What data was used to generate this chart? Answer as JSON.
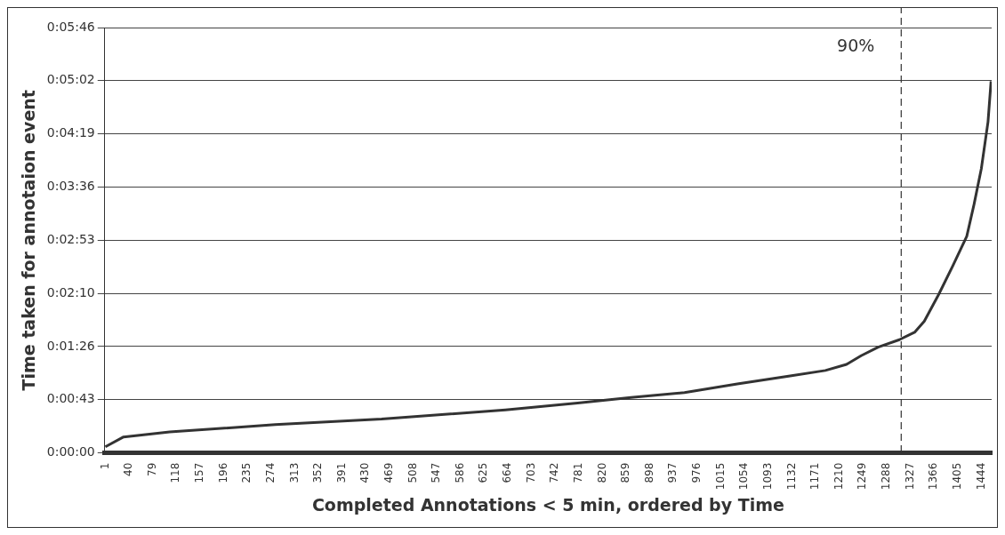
{
  "chart_data": {
    "type": "line",
    "xlabel": "Completed Annotations < 5 min, ordered by Time",
    "ylabel": "Time taken for annotaion event",
    "xlim": [
      0,
      1461
    ],
    "xticks": [
      1,
      40,
      79,
      118,
      157,
      196,
      235,
      274,
      313,
      352,
      391,
      430,
      469,
      508,
      547,
      586,
      625,
      664,
      703,
      742,
      781,
      820,
      859,
      898,
      937,
      976,
      1015,
      1054,
      1093,
      1132,
      1171,
      1210,
      1249,
      1288,
      1327,
      1366,
      1405,
      1444
    ],
    "ylim": [
      0,
      345.6
    ],
    "yticks": [
      {
        "value": 0,
        "label": "0:00:00"
      },
      {
        "value": 43.2,
        "label": "0:00:43"
      },
      {
        "value": 86.4,
        "label": "0:01:26"
      },
      {
        "value": 129.6,
        "label": "0:02:10"
      },
      {
        "value": 172.8,
        "label": "0:02:53"
      },
      {
        "value": 216,
        "label": "0:03:36"
      },
      {
        "value": 259.2,
        "label": "0:04:19"
      },
      {
        "value": 302.4,
        "label": "0:05:02"
      },
      {
        "value": 345.6,
        "label": "0:05:46"
      }
    ],
    "grid": "y",
    "legend": false,
    "marker": "none",
    "line_style": "solid",
    "ref_lines": [
      {
        "axis": "x",
        "value": 1312,
        "color": "#333333",
        "line_style": "dashed"
      }
    ],
    "annotations": [
      "90%"
    ],
    "series": [
      {
        "color": "#333333",
        "x": [
          1,
          31,
          107,
          281,
          456,
          660,
          779,
          867,
          955,
          1042,
          1129,
          1187,
          1222,
          1246,
          1274,
          1309,
          1334,
          1350,
          1374,
          1397,
          1420,
          1432,
          1444,
          1455,
          1460
        ],
        "values": [
          5,
          13,
          17,
          23,
          27.5,
          35,
          40.6,
          45,
          49,
          56,
          62.6,
          67,
          72,
          79,
          86,
          92,
          98,
          107,
          129,
          152,
          176,
          202,
          231,
          269,
          302
        ]
      }
    ]
  }
}
